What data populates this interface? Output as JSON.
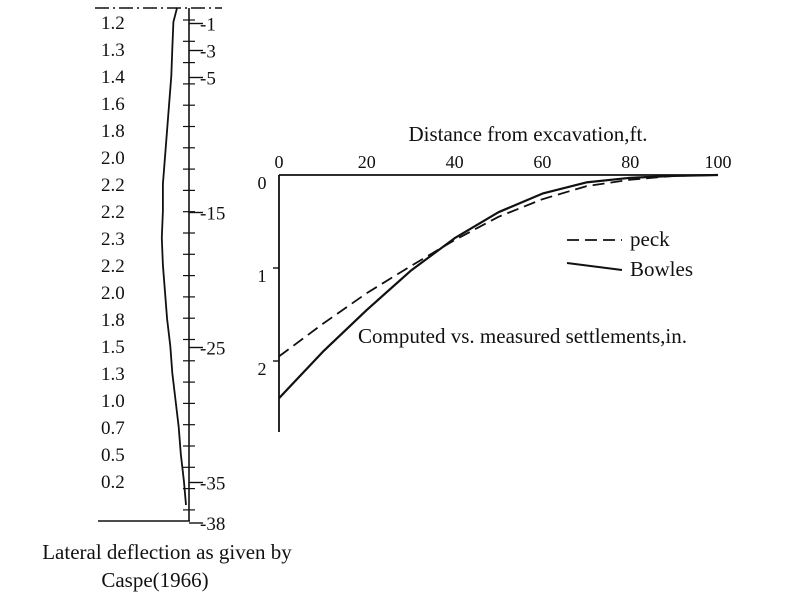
{
  "chart_data": [
    {
      "type": "line",
      "title": "Lateral deflection as given by Caspe(1966)",
      "title_lines": [
        "Lateral deflection as given by",
        "Caspe(1966)"
      ],
      "depth_ticks": [
        "-1",
        "-3",
        "-5",
        "-15",
        "-25",
        "-35",
        "-38"
      ],
      "depth_values": [
        -1,
        -3,
        -5,
        -15,
        -25,
        -35,
        -38
      ],
      "deflection_labels": [
        "1.2",
        "1.3",
        "1.4",
        "1.6",
        "1.8",
        "2.0",
        "2.2",
        "2.2",
        "2.3",
        "2.2",
        "2.0",
        "1.8",
        "1.5",
        "1.3",
        "1.0",
        "0.7",
        "0.5",
        "0.2"
      ],
      "deflection_values": [
        1.2,
        1.3,
        1.4,
        1.6,
        1.8,
        2.0,
        2.2,
        2.2,
        2.3,
        2.2,
        2.0,
        1.8,
        1.5,
        1.3,
        1.0,
        0.7,
        0.5,
        0.2
      ],
      "ylim": [
        0,
        -38
      ],
      "grid": false
    },
    {
      "type": "line",
      "title": "Computed vs. measured settlements,in.",
      "xlabel": "Distance from excavation,ft.",
      "x_ticks": [
        "0",
        "20",
        "40",
        "60",
        "80",
        "100"
      ],
      "y_ticks": [
        "0",
        "1",
        "2"
      ],
      "xlim": [
        0,
        100
      ],
      "ylim": [
        0,
        3
      ],
      "y_inverted": true,
      "grid": false,
      "legend_position": "right",
      "series": [
        {
          "name": "peck",
          "style": "dashed",
          "x": [
            0,
            10,
            20,
            30,
            40,
            50,
            60,
            70,
            80,
            90,
            100
          ],
          "y": [
            1.95,
            1.6,
            1.27,
            0.98,
            0.7,
            0.45,
            0.26,
            0.12,
            0.05,
            0.01,
            0.0
          ]
        },
        {
          "name": "Bowles",
          "style": "solid",
          "x": [
            0,
            10,
            20,
            30,
            40,
            50,
            60,
            70,
            80,
            90,
            100
          ],
          "y": [
            2.4,
            1.9,
            1.45,
            1.03,
            0.68,
            0.4,
            0.2,
            0.08,
            0.03,
            0.01,
            0.0
          ]
        }
      ]
    }
  ]
}
